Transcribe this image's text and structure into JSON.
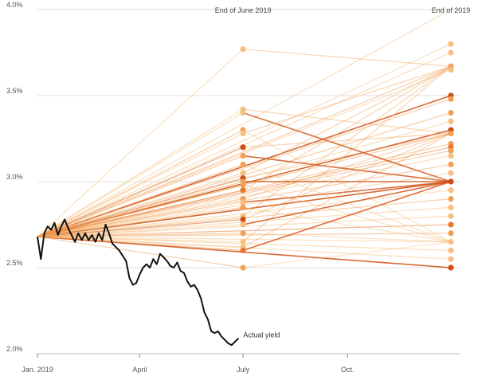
{
  "chart_data": {
    "type": "line",
    "x_unit": "date",
    "xlim": [
      "2019-01-01",
      "2019-12-31"
    ],
    "ylim": [
      2.0,
      4.0
    ],
    "y_ticks": [
      2.0,
      2.5,
      3.0,
      3.5,
      4.0
    ],
    "y_tick_labels": [
      "2.0%",
      "2.5%",
      "3.0%",
      "3.5%",
      "4.0%"
    ],
    "x_ticks": [
      "2019-01-01",
      "2019-04-01",
      "2019-07-01",
      "2019-10-01"
    ],
    "x_tick_labels": [
      "Jan. 2019",
      "April",
      "July",
      "Oct."
    ],
    "gridlines": "horizontal",
    "column_headers": [
      {
        "date": "2019-07-01",
        "label": "End of June 2019"
      },
      {
        "date": "2019-12-31",
        "label": "End of 2019"
      }
    ],
    "forecast_start": {
      "date": "2019-01-01",
      "value": 2.68
    },
    "mid_forecasts": [
      3.77,
      3.42,
      3.4,
      3.3,
      3.28,
      3.2,
      3.15,
      3.1,
      3.05,
      3.02,
      3.0,
      2.98,
      2.95,
      2.9,
      2.88,
      2.85,
      2.8,
      2.78,
      2.75,
      2.7,
      2.65,
      2.62,
      2.6,
      2.5
    ],
    "year_end_forecasts": [
      4.0,
      3.8,
      3.75,
      3.67,
      3.65,
      3.5,
      3.48,
      3.4,
      3.35,
      3.3,
      3.28,
      3.22,
      3.2,
      3.18,
      3.15,
      3.1,
      3.05,
      3.0,
      2.95,
      2.9,
      2.85,
      2.8,
      2.75,
      2.7,
      2.65,
      2.6,
      2.55,
      2.5
    ],
    "year_end_intensity": [
      0.2,
      0.2,
      0.2,
      0.4,
      0.2,
      1.0,
      0.4,
      0.4,
      0.2,
      1.0,
      0.4,
      0.4,
      0.6,
      0.4,
      0.2,
      0.4,
      0.2,
      1.0,
      0.2,
      0.4,
      0.2,
      0.2,
      0.6,
      0.4,
      0.2,
      0.2,
      0.2,
      1.0
    ],
    "series": [
      {
        "name": "Actual yield",
        "x": [
          "2019-01-01",
          "2019-01-04",
          "2019-01-07",
          "2019-01-10",
          "2019-01-13",
          "2019-01-16",
          "2019-01-19",
          "2019-01-22",
          "2019-01-25",
          "2019-01-28",
          "2019-01-31",
          "2019-02-03",
          "2019-02-06",
          "2019-02-09",
          "2019-02-12",
          "2019-02-15",
          "2019-02-18",
          "2019-02-21",
          "2019-02-24",
          "2019-02-27",
          "2019-03-02",
          "2019-03-05",
          "2019-03-08",
          "2019-03-11",
          "2019-03-14",
          "2019-03-17",
          "2019-03-20",
          "2019-03-23",
          "2019-03-26",
          "2019-03-29",
          "2019-04-01",
          "2019-04-04",
          "2019-04-07",
          "2019-04-10",
          "2019-04-13",
          "2019-04-16",
          "2019-04-19",
          "2019-04-22",
          "2019-04-25",
          "2019-04-28",
          "2019-05-01",
          "2019-05-04",
          "2019-05-07",
          "2019-05-10",
          "2019-05-13",
          "2019-05-16",
          "2019-05-19",
          "2019-05-22",
          "2019-05-25",
          "2019-05-28",
          "2019-05-31",
          "2019-06-03",
          "2019-06-06",
          "2019-06-09",
          "2019-06-12",
          "2019-06-15",
          "2019-06-18",
          "2019-06-21",
          "2019-06-24",
          "2019-06-27"
        ],
        "values": [
          2.68,
          2.55,
          2.7,
          2.74,
          2.72,
          2.76,
          2.69,
          2.74,
          2.78,
          2.73,
          2.69,
          2.65,
          2.7,
          2.66,
          2.7,
          2.66,
          2.69,
          2.65,
          2.7,
          2.66,
          2.75,
          2.7,
          2.64,
          2.62,
          2.6,
          2.57,
          2.54,
          2.44,
          2.4,
          2.41,
          2.46,
          2.5,
          2.52,
          2.5,
          2.55,
          2.52,
          2.58,
          2.56,
          2.54,
          2.51,
          2.5,
          2.53,
          2.48,
          2.47,
          2.42,
          2.39,
          2.4,
          2.37,
          2.32,
          2.24,
          2.2,
          2.13,
          2.12,
          2.13,
          2.1,
          2.08,
          2.06,
          2.05,
          2.07,
          2.09
        ]
      }
    ],
    "annotations": [
      {
        "text": "Actual yield",
        "date": "2019-06-27",
        "value": 2.1
      }
    ]
  }
}
